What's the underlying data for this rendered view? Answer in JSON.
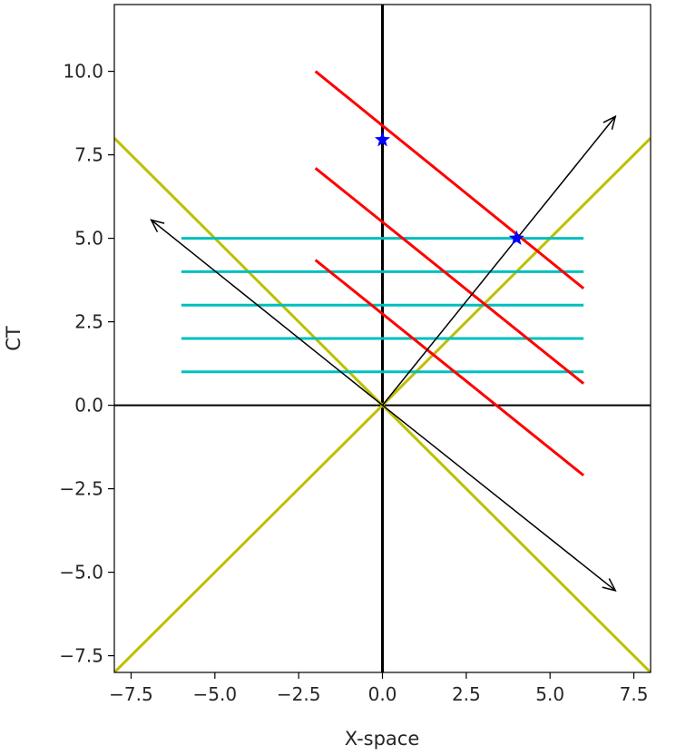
{
  "chart_data": {
    "type": "line",
    "title": "",
    "xlabel": "X-space",
    "ylabel": "CT",
    "xlim": [
      -8,
      8
    ],
    "ylim": [
      -8,
      12
    ],
    "xticks": [
      -7.5,
      -5.0,
      -2.5,
      0.0,
      2.5,
      5.0,
      7.5
    ],
    "yticks": [
      -7.5,
      -5.0,
      -2.5,
      0.0,
      2.5,
      5.0,
      7.5,
      10.0
    ],
    "grid": false,
    "legend": "none",
    "colors": {
      "light_cone": "#bfbf00",
      "red_lines": "#ff0000",
      "cyan_lines": "#00bfbf",
      "axes": "#000000",
      "arrows": "#000000",
      "stars": "#0000ff"
    },
    "light_cone": [
      {
        "x": [
          -8,
          8
        ],
        "y": [
          8,
          -8
        ]
      },
      {
        "x": [
          -8,
          8
        ],
        "y": [
          -8,
          8
        ]
      }
    ],
    "red_lines": [
      {
        "x": [
          -2,
          6
        ],
        "y": [
          10.0,
          3.5
        ]
      },
      {
        "x": [
          -2,
          6
        ],
        "y": [
          7.1,
          0.65
        ]
      },
      {
        "x": [
          -2,
          6
        ],
        "y": [
          4.35,
          -2.1
        ]
      }
    ],
    "cyan_lines": [
      {
        "x": [
          -6,
          6
        ],
        "y": [
          5,
          5
        ]
      },
      {
        "x": [
          -6,
          6
        ],
        "y": [
          4,
          4
        ]
      },
      {
        "x": [
          -6,
          6
        ],
        "y": [
          3,
          3
        ]
      },
      {
        "x": [
          -6,
          6
        ],
        "y": [
          2,
          2
        ]
      },
      {
        "x": [
          -6,
          6
        ],
        "y": [
          1,
          1
        ]
      }
    ],
    "vertical_axis_line": {
      "x": [
        0,
        0
      ],
      "y": [
        -8,
        12
      ]
    },
    "horizontal_axis_line": {
      "x": [
        -8,
        8
      ],
      "y": [
        0,
        0
      ]
    },
    "arrows": [
      {
        "from": [
          0,
          0
        ],
        "to": [
          -6.9,
          5.55
        ]
      },
      {
        "from": [
          0,
          0
        ],
        "to": [
          6.95,
          8.65
        ]
      },
      {
        "from": [
          0,
          0
        ],
        "to": [
          6.95,
          -5.55
        ]
      }
    ],
    "stars": [
      {
        "x": 0.0,
        "y": 7.95
      },
      {
        "x": 4.0,
        "y": 5.0
      }
    ]
  }
}
